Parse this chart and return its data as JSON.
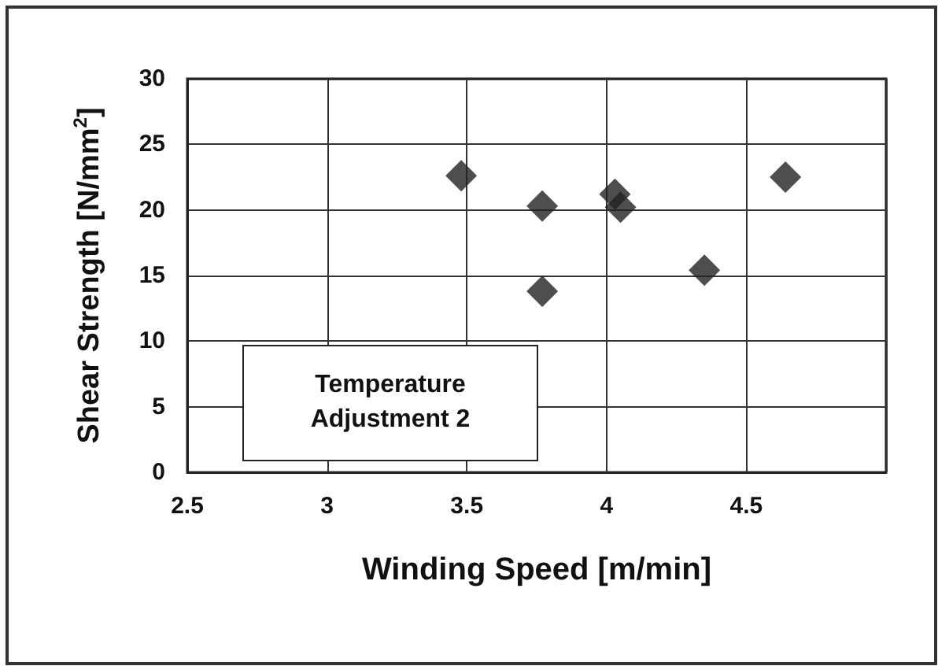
{
  "chart_data": {
    "type": "scatter",
    "xlabel": "Winding Speed [m/min]",
    "ylabel": "Shear Strength [N/mm$^{2}$]",
    "x": [
      3.48,
      3.77,
      4.03,
      4.05,
      4.64,
      4.35,
      3.77
    ],
    "values": [
      22.6,
      20.3,
      21.2,
      20.2,
      22.5,
      15.4,
      13.8
    ],
    "color": "#222222",
    "marker": "diamond",
    "xlim": [
      2.5,
      5
    ],
    "xticks": [
      2.5,
      3,
      3.5,
      4,
      4.5,
      {
        "value": 5,
        "label": null
      }
    ],
    "ylim": [
      0,
      30
    ],
    "yticks": [
      0,
      5,
      10,
      15,
      20,
      25,
      30
    ],
    "grid": true,
    "annotations": [
      "Temperature\nAdjustment 2"
    ]
  }
}
